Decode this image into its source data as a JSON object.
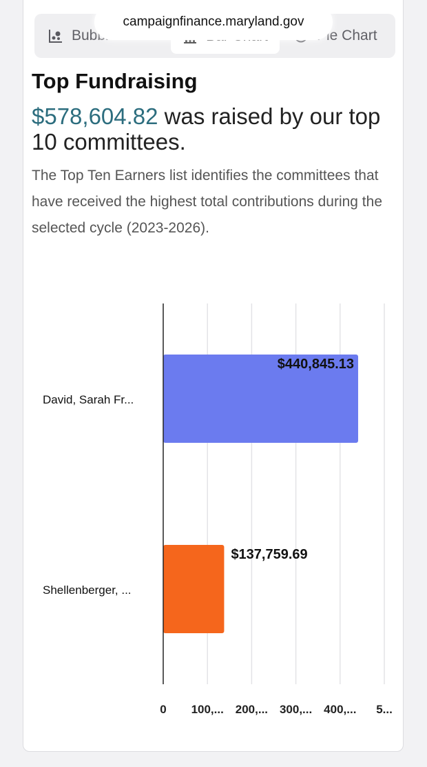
{
  "browser": {
    "url": "campaignfinance.maryland.gov"
  },
  "tabs": [
    {
      "label": "Bubble Chart",
      "icon": "bubble-chart-icon"
    },
    {
      "label": "Bar Chart",
      "icon": "bar-chart-icon"
    },
    {
      "label": "Pie Chart",
      "icon": "pie-chart-icon"
    }
  ],
  "header": {
    "title": "Top Fundraising",
    "total_amount": "$578,604.82",
    "headline_rest": " was raised by our top 10 committees.",
    "description": "The Top Ten Earners list identifies the committees that have received the highest total contributions during the selected cycle (2023-2026)."
  },
  "chart_data": {
    "type": "bar",
    "orientation": "horizontal",
    "categories": [
      "David, Sarah Fr...",
      "Shellenberger, ..."
    ],
    "values": [
      440845.13,
      137759.69
    ],
    "data_labels": [
      "$440,845.13",
      "$137,759.69"
    ],
    "colors": [
      "#6b7bef",
      "#f5661c"
    ],
    "x_ticks": [
      0,
      100000,
      200000,
      300000,
      400000,
      500000
    ],
    "x_tick_labels": [
      "0",
      "100,...",
      "200,...",
      "300,...",
      "400,...",
      "5..."
    ],
    "xlim": [
      0,
      500000
    ],
    "grid": true
  }
}
